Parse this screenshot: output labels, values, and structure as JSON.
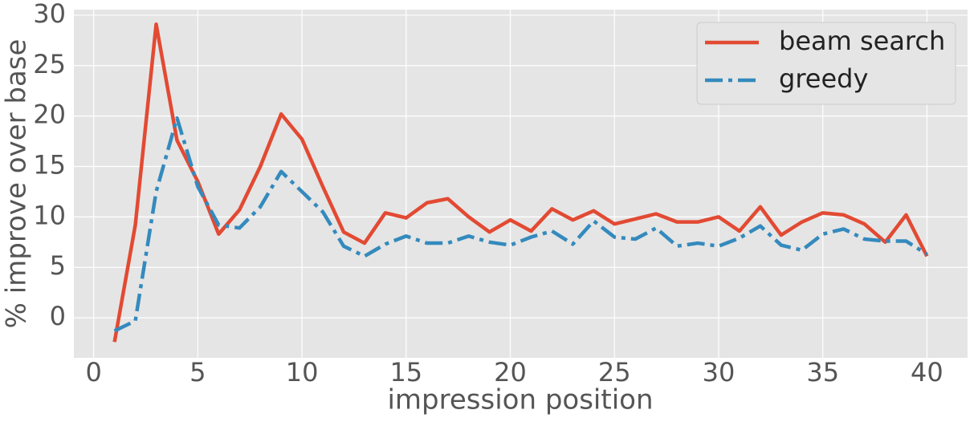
{
  "chart_data": {
    "type": "line",
    "x_label": "impression position",
    "y_label": "% improve over base",
    "x": [
      1,
      2,
      3,
      4,
      5,
      6,
      7,
      8,
      9,
      10,
      11,
      12,
      13,
      14,
      15,
      16,
      17,
      18,
      19,
      20,
      21,
      22,
      23,
      24,
      25,
      26,
      27,
      28,
      29,
      30,
      31,
      32,
      33,
      34,
      35,
      36,
      37,
      38,
      39,
      40
    ],
    "series": [
      {
        "name": "beam search",
        "color": "#E24A33",
        "style": "solid",
        "values": [
          -2.4,
          9.2,
          29.1,
          17.6,
          13.5,
          8.3,
          10.7,
          15.0,
          20.2,
          17.7,
          13.0,
          8.5,
          7.4,
          10.4,
          9.9,
          11.4,
          11.8,
          10.0,
          8.5,
          9.7,
          8.6,
          10.8,
          9.7,
          10.6,
          9.3,
          9.8,
          10.3,
          9.5,
          9.5,
          10.0,
          8.6,
          11.0,
          8.2,
          9.5,
          10.4,
          10.2,
          9.3,
          7.5,
          10.2,
          6.1
        ]
      },
      {
        "name": "greedy",
        "color": "#348ABD",
        "style": "dashdot",
        "values": [
          -1.3,
          -0.3,
          12.5,
          19.8,
          13.0,
          9.2,
          8.9,
          11.0,
          14.5,
          12.5,
          10.5,
          7.1,
          6.1,
          7.3,
          8.1,
          7.4,
          7.4,
          8.1,
          7.5,
          7.2,
          8.0,
          8.6,
          7.3,
          9.6,
          8.0,
          7.8,
          8.9,
          7.1,
          7.4,
          7.1,
          7.9,
          9.1,
          7.2,
          6.7,
          8.3,
          8.8,
          7.8,
          7.6,
          7.6,
          6.3
        ]
      }
    ],
    "xlim": [
      -0.95,
      41.95
    ],
    "xticks": [
      0,
      5,
      10,
      15,
      20,
      25,
      30,
      35,
      40
    ],
    "ylim": [
      -3.97,
      30.55
    ],
    "yticks": [
      0,
      5,
      10,
      15,
      20,
      25,
      30
    ],
    "grid": true,
    "legend": "upper right"
  }
}
